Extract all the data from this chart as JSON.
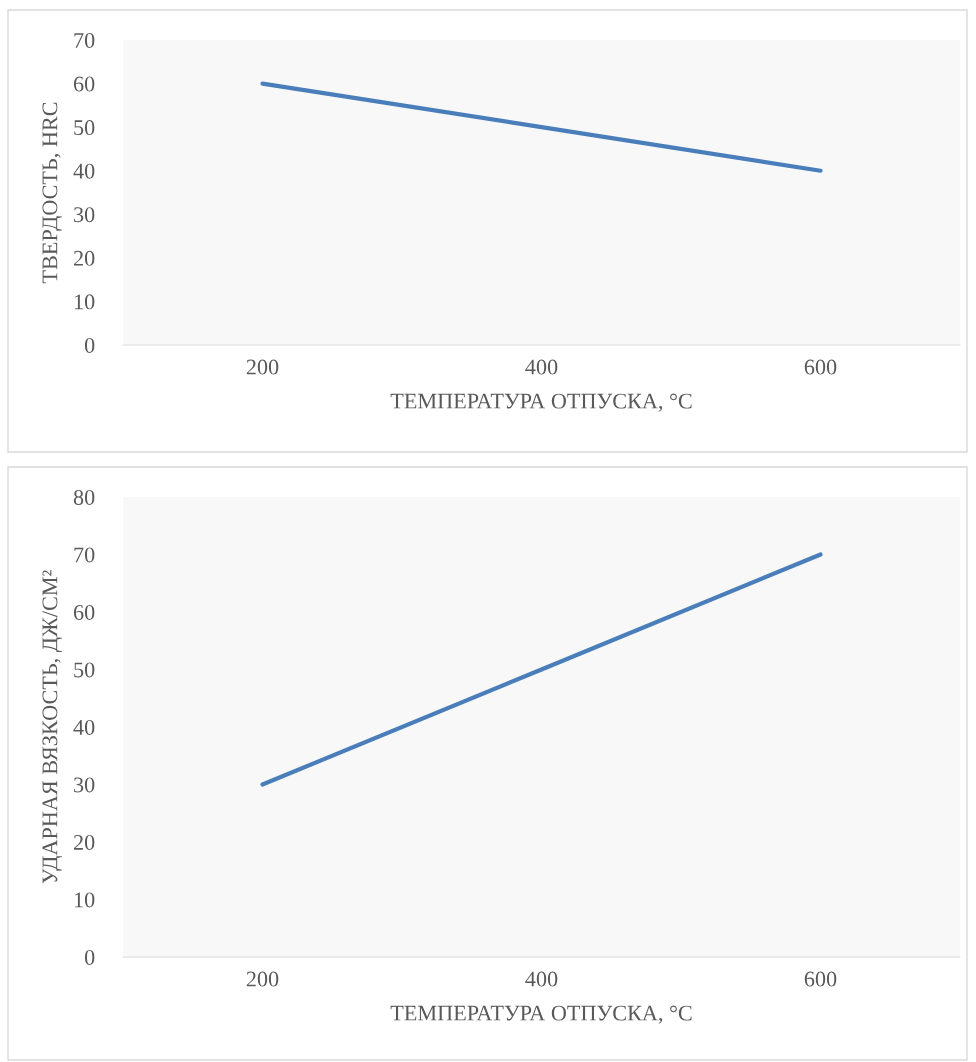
{
  "chart_data": [
    {
      "type": "line",
      "categories": [
        "200",
        "400",
        "600"
      ],
      "xlabel": "ТЕМПЕРАТУРА ОТПУСКА, °C",
      "ylabel": "ТВЕРДОСТЬ, HRC",
      "series": [
        {
          "color": "#4a7ebb",
          "values": [
            60,
            50,
            40
          ]
        }
      ],
      "ylim": [
        0,
        70
      ],
      "yticks": [
        0,
        10,
        20,
        30,
        40,
        50,
        60,
        70
      ],
      "grid": false,
      "legend": false,
      "marker": "none",
      "line_style": "solid"
    },
    {
      "type": "line",
      "categories": [
        "200",
        "400",
        "600"
      ],
      "xlabel": "ТЕМПЕРАТУРА ОТПУСКА, °C",
      "ylabel": "УДАРНАЯ ВЯЗКОСТЬ, ДЖ/СМ²",
      "series": [
        {
          "color": "#4a7ebb",
          "values": [
            30,
            50,
            70
          ]
        }
      ],
      "ylim": [
        0,
        80
      ],
      "yticks": [
        0,
        10,
        20,
        30,
        40,
        50,
        60,
        70,
        80
      ],
      "grid": false,
      "legend": false,
      "marker": "none",
      "line_style": "solid"
    }
  ]
}
